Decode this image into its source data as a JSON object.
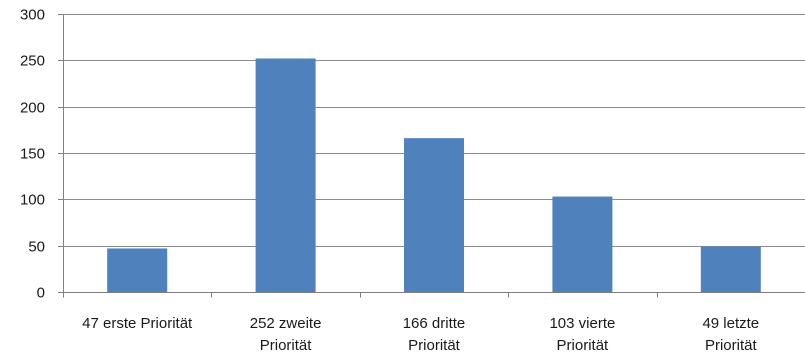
{
  "chart_data": {
    "type": "bar",
    "categories": [
      [
        "47 erste Priorität"
      ],
      [
        "252 zweite",
        "Priorität"
      ],
      [
        "166 dritte",
        "Priorität"
      ],
      [
        "103 vierte",
        "Priorität"
      ],
      [
        "49 letzte",
        "Priorität"
      ]
    ],
    "values": [
      47,
      252,
      166,
      103,
      49
    ],
    "ylim": [
      0,
      300
    ],
    "yticks": [
      0,
      50,
      100,
      150,
      200,
      250,
      300
    ],
    "title": "",
    "xlabel": "",
    "ylabel": "",
    "grid": true,
    "legend": "none",
    "colors": {
      "bar": "#4f81bd"
    }
  }
}
